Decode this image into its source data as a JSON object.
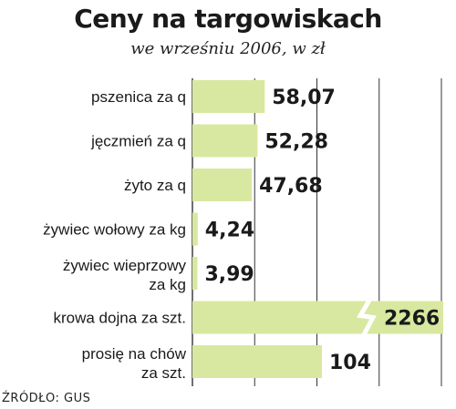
{
  "header": {
    "title": "Ceny na targowiskach",
    "subtitle": "we wrześniu 2006, w zł"
  },
  "source": "ŹRÓDŁO: GUS",
  "colors": {
    "bar": "#d8e8a0",
    "grid": "#333333",
    "text": "#1a1a1a"
  },
  "chart_data": {
    "type": "bar",
    "orientation": "horizontal",
    "title": "Ceny na targowiskach",
    "subtitle": "we wrześniu 2006, w zł",
    "unit": "zł",
    "categories": [
      [
        "pszenica za q"
      ],
      [
        "jęczmień za q"
      ],
      [
        "żyto za q"
      ],
      [
        "żywiec wołowy za kg"
      ],
      [
        "żywiec wieprzowy",
        "za kg"
      ],
      [
        "krowa dojna za szt."
      ],
      [
        "prosię na chów",
        "za szt."
      ]
    ],
    "values": [
      58.07,
      52.28,
      47.68,
      4.24,
      3.99,
      2266,
      104
    ],
    "value_labels": [
      "58,07",
      "52,28",
      "47,68",
      "4,24",
      "3,99",
      "2266",
      "104"
    ],
    "broken_axis_bar_index": 5,
    "xlim": [
      0,
      200
    ],
    "grid": true,
    "legend": "none"
  }
}
